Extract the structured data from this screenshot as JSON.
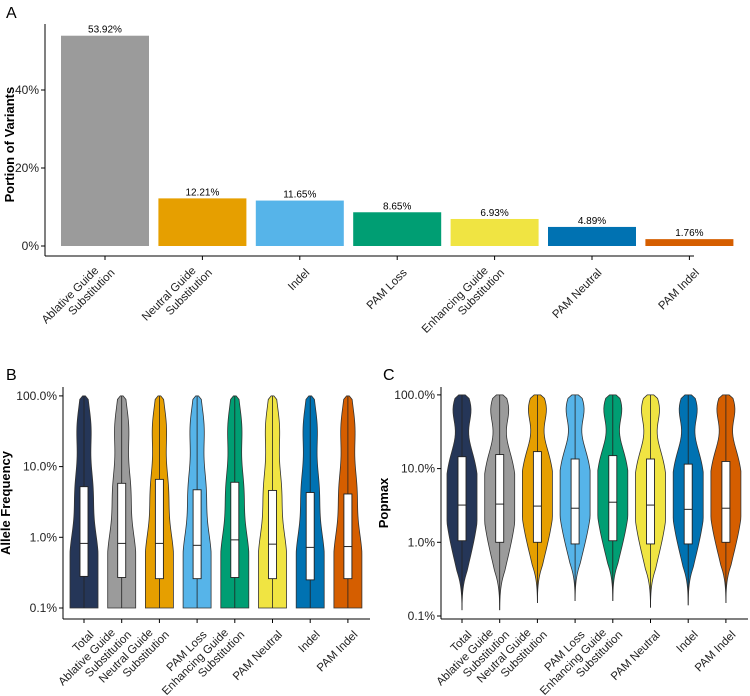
{
  "colors": {
    "gray": "#9b9b9b",
    "orange": "#e69f00",
    "skyblue": "#56b4e9",
    "green": "#009e73",
    "yellow": "#f0e442",
    "blue": "#0072b2",
    "vermillion": "#d55e00",
    "navy": "#253658"
  },
  "chart_data": [
    {
      "panel": "A",
      "type": "bar",
      "ylabel": "Portion of Variants",
      "ylim": [
        0,
        56
      ],
      "yticks": [
        0,
        20,
        40
      ],
      "ytick_labels": [
        "0%",
        "20%",
        "40%"
      ],
      "categories": [
        [
          "Ablative Guide",
          "Substitution"
        ],
        [
          "Neutral Guide",
          "Substitution"
        ],
        [
          "Indel"
        ],
        [
          "PAM Loss"
        ],
        [
          "Enhancing Guide",
          "Substitution"
        ],
        [
          "PAM Neutral"
        ],
        [
          "PAM Indel"
        ]
      ],
      "values": [
        53.92,
        12.21,
        11.65,
        8.65,
        6.93,
        4.89,
        1.76
      ],
      "value_labels": [
        "53.92%",
        "12.21%",
        "11.65%",
        "8.65%",
        "6.93%",
        "4.89%",
        "1.76%"
      ],
      "colors": [
        "gray",
        "orange",
        "skyblue",
        "green",
        "yellow",
        "blue",
        "vermillion"
      ]
    },
    {
      "panel": "B",
      "type": "violin",
      "ylabel": "Allele Frequency",
      "yscale": "log10",
      "ylim": [
        0.09,
        100
      ],
      "yticks": [
        0.1,
        1,
        10,
        100
      ],
      "ytick_labels": [
        "0.1%",
        "1.0%",
        "10.0%",
        "100.0%"
      ],
      "categories": [
        [
          "Total"
        ],
        [
          "Ablative Guide",
          "Substitution"
        ],
        [
          "Neutral Guide",
          "Substitution"
        ],
        [
          "PAM Loss"
        ],
        [
          "Enhancing Guide",
          "Substitution"
        ],
        [
          "PAM Neutral"
        ],
        [
          "Indel"
        ],
        [
          "PAM Indel"
        ]
      ],
      "colors": [
        "navy",
        "gray",
        "orange",
        "skyblue",
        "green",
        "yellow",
        "blue",
        "vermillion"
      ],
      "boxes": [
        {
          "q1": 0.28,
          "median": 0.82,
          "q3": 5.2
        },
        {
          "q1": 0.27,
          "median": 0.82,
          "q3": 5.8
        },
        {
          "q1": 0.26,
          "median": 0.82,
          "q3": 6.6
        },
        {
          "q1": 0.26,
          "median": 0.77,
          "q3": 4.7
        },
        {
          "q1": 0.27,
          "median": 0.92,
          "q3": 6.0
        },
        {
          "q1": 0.26,
          "median": 0.8,
          "q3": 4.6
        },
        {
          "q1": 0.25,
          "median": 0.72,
          "q3": 4.3
        },
        {
          "q1": 0.26,
          "median": 0.74,
          "q3": 4.1
        }
      ],
      "range": [
        0.1,
        100
      ]
    },
    {
      "panel": "C",
      "type": "violin",
      "ylabel": "Popmax",
      "yscale": "log10",
      "ylim": [
        0.09,
        100
      ],
      "yticks": [
        0.1,
        1,
        10,
        100
      ],
      "ytick_labels": [
        "0.1%",
        "1.0%",
        "10.0%",
        "100.0%"
      ],
      "categories": [
        [
          "Total"
        ],
        [
          "Ablative Guide",
          "Substitution"
        ],
        [
          "Neutral Guide",
          "Substitution"
        ],
        [
          "PAM Loss"
        ],
        [
          "Enhancing Guide",
          "Substitution"
        ],
        [
          "PAM Neutral"
        ],
        [
          "Indel"
        ],
        [
          "PAM Indel"
        ]
      ],
      "colors": [
        "navy",
        "gray",
        "orange",
        "skyblue",
        "green",
        "yellow",
        "blue",
        "vermillion"
      ],
      "boxes": [
        {
          "q1": 1.05,
          "median": 3.2,
          "q3": 14.5
        },
        {
          "q1": 1.0,
          "median": 3.3,
          "q3": 15.5
        },
        {
          "q1": 1.0,
          "median": 3.1,
          "q3": 17.0
        },
        {
          "q1": 0.95,
          "median": 2.9,
          "q3": 13.5
        },
        {
          "q1": 1.05,
          "median": 3.5,
          "q3": 15.0
        },
        {
          "q1": 0.95,
          "median": 3.2,
          "q3": 13.5
        },
        {
          "q1": 0.95,
          "median": 2.8,
          "q3": 11.5
        },
        {
          "q1": 1.0,
          "median": 2.9,
          "q3": 12.5
        }
      ],
      "range_min": [
        0.12,
        0.12,
        0.15,
        0.16,
        0.16,
        0.13,
        0.14,
        0.15
      ],
      "range_max": 100
    }
  ]
}
